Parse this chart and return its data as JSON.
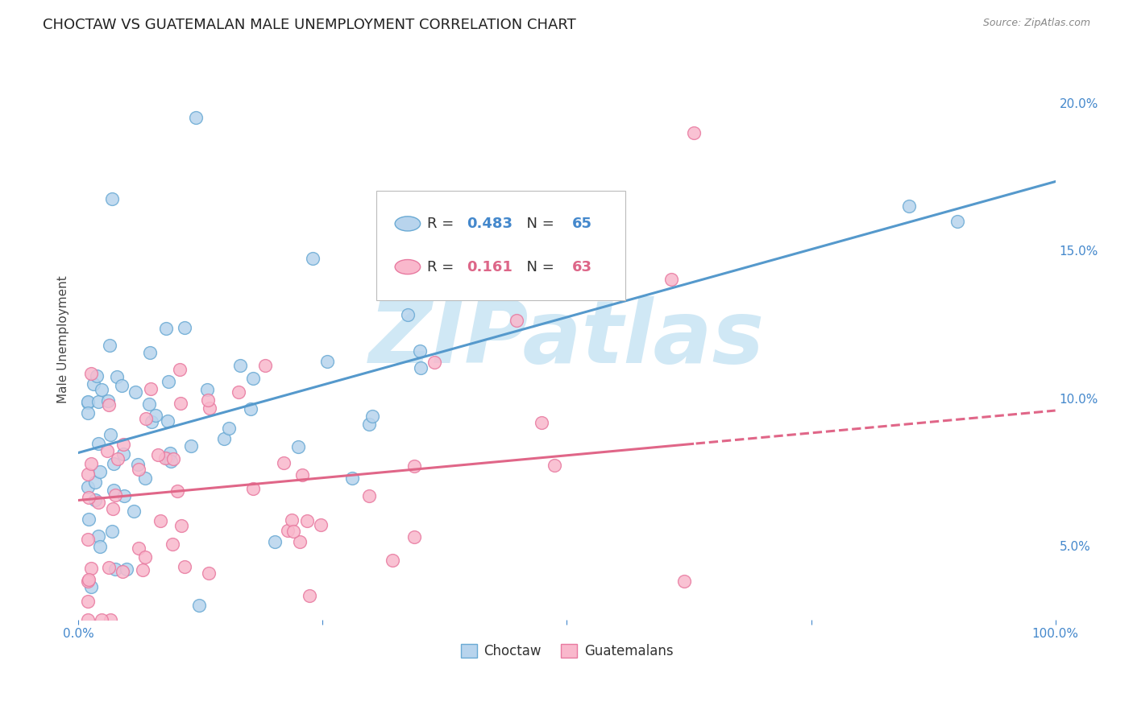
{
  "title": "CHOCTAW VS GUATEMALAN MALE UNEMPLOYMENT CORRELATION CHART",
  "source": "Source: ZipAtlas.com",
  "ylabel": "Male Unemployment",
  "yticks": [
    0.05,
    0.1,
    0.15,
    0.2
  ],
  "ytick_labels": [
    "5.0%",
    "10.0%",
    "15.0%",
    "20.0%"
  ],
  "xmin": 0.0,
  "xmax": 1.0,
  "ymin": 0.025,
  "ymax": 0.215,
  "choctaw_R": 0.483,
  "choctaw_N": 65,
  "guatemalan_R": 0.161,
  "guatemalan_N": 63,
  "choctaw_fill": "#b8d4ed",
  "choctaw_edge": "#6aaad4",
  "guatemalan_fill": "#f9b8cc",
  "guatemalan_edge": "#e87aa0",
  "choctaw_line_color": "#5599cc",
  "guatemalan_line_color": "#e06688",
  "watermark_color": "#d0e8f5",
  "background_color": "#ffffff",
  "grid_color": "#dddddd",
  "title_fontsize": 13,
  "tick_fontsize": 11,
  "legend_fontsize": 13,
  "r_color_blue": "#4488cc",
  "r_color_pink": "#dd6688",
  "n_color_blue": "#4488cc",
  "n_color_pink": "#dd6688"
}
